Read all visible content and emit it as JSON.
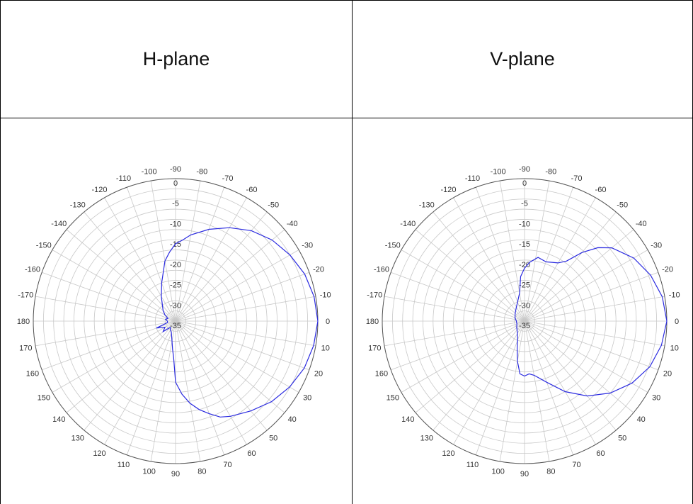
{
  "table": {
    "headers": [
      "H-plane",
      "V-plane"
    ]
  },
  "colors": {
    "trace": "#2a2ae0",
    "grid": "#c8c8c8",
    "border": "#000000"
  },
  "chart_data": [
    {
      "type": "polar-line",
      "title": "H-plane",
      "angle_ticks": [
        -170,
        -160,
        -150,
        -140,
        -130,
        -120,
        -110,
        -100,
        -90,
        -80,
        -70,
        -60,
        -50,
        -40,
        -30,
        -20,
        -10,
        0,
        10,
        20,
        30,
        40,
        50,
        60,
        70,
        80,
        90,
        100,
        110,
        120,
        130,
        140,
        150,
        160,
        170,
        180
      ],
      "radial_ticks": [
        0,
        -5,
        -10,
        -15,
        -20,
        -25,
        -30,
        -35
      ],
      "r_range": [
        -35,
        0
      ],
      "series": [
        {
          "points": [
            [
              -180,
              -33
            ],
            [
              -170,
              -32.5
            ],
            [
              -160,
              -33
            ],
            [
              -150,
              -32
            ],
            [
              -140,
              -31
            ],
            [
              -130,
              -30
            ],
            [
              -120,
              -28
            ],
            [
              -110,
              -25
            ],
            [
              -100,
              -20
            ],
            [
              -95,
              -18
            ],
            [
              -90,
              -16
            ],
            [
              -85,
              -15
            ],
            [
              -80,
              -13.5
            ],
            [
              -70,
              -11
            ],
            [
              -60,
              -8.5
            ],
            [
              -50,
              -6
            ],
            [
              -40,
              -4
            ],
            [
              -30,
              -2.5
            ],
            [
              -20,
              -1.2
            ],
            [
              -10,
              -0.4
            ],
            [
              0,
              0
            ],
            [
              10,
              -0.5
            ],
            [
              20,
              -1.3
            ],
            [
              30,
              -2.6
            ],
            [
              40,
              -4.2
            ],
            [
              50,
              -6.2
            ],
            [
              60,
              -8
            ],
            [
              65,
              -9
            ],
            [
              70,
              -10.8
            ],
            [
              75,
              -12.5
            ],
            [
              80,
              -14.5
            ],
            [
              85,
              -17
            ],
            [
              90,
              -20
            ],
            [
              93,
              -26
            ],
            [
              96,
              -28
            ],
            [
              100,
              -30
            ],
            [
              110,
              -32
            ],
            [
              120,
              -32.5
            ],
            [
              130,
              -33
            ],
            [
              140,
              -31
            ],
            [
              150,
              -32
            ],
            [
              160,
              -30
            ],
            [
              170,
              -33
            ],
            [
              180,
              -33
            ]
          ]
        }
      ]
    },
    {
      "type": "polar-line",
      "title": "V-plane",
      "angle_ticks": [
        -170,
        -160,
        -150,
        -140,
        -130,
        -120,
        -110,
        -100,
        -90,
        -80,
        -70,
        -60,
        -50,
        -40,
        -30,
        -20,
        -10,
        0,
        10,
        20,
        30,
        40,
        50,
        60,
        70,
        80,
        90,
        100,
        110,
        120,
        130,
        140,
        150,
        160,
        170,
        180
      ],
      "radial_ticks": [
        0,
        -5,
        -10,
        -15,
        -20,
        -25,
        -30,
        -35
      ],
      "r_range": [
        -35,
        0
      ],
      "series": [
        {
          "points": [
            [
              -180,
              -33
            ],
            [
              -160,
              -32.5
            ],
            [
              -140,
              -32
            ],
            [
              -120,
              -31
            ],
            [
              -110,
              -30
            ],
            [
              -100,
              -28
            ],
            [
              -95,
              -24
            ],
            [
              -90,
              -22
            ],
            [
              -85,
              -20.5
            ],
            [
              -78,
              -19
            ],
            [
              -70,
              -19.5
            ],
            [
              -60,
              -18.5
            ],
            [
              -55,
              -17
            ],
            [
              -50,
              -13
            ],
            [
              -45,
              -9.5
            ],
            [
              -40,
              -7
            ],
            [
              -30,
              -4
            ],
            [
              -20,
              -2
            ],
            [
              -10,
              -0.6
            ],
            [
              0,
              0
            ],
            [
              10,
              -0.8
            ],
            [
              20,
              -2.2
            ],
            [
              30,
              -4.5
            ],
            [
              40,
              -7.5
            ],
            [
              50,
              -11
            ],
            [
              60,
              -15
            ],
            [
              70,
              -19
            ],
            [
              80,
              -21.5
            ],
            [
              85,
              -22
            ],
            [
              90,
              -21.5
            ],
            [
              95,
              -22
            ],
            [
              100,
              -25
            ],
            [
              105,
              -28
            ],
            [
              110,
              -30
            ],
            [
              120,
              -31.5
            ],
            [
              140,
              -32.5
            ],
            [
              160,
              -33
            ],
            [
              180,
              -33
            ]
          ]
        }
      ]
    }
  ]
}
